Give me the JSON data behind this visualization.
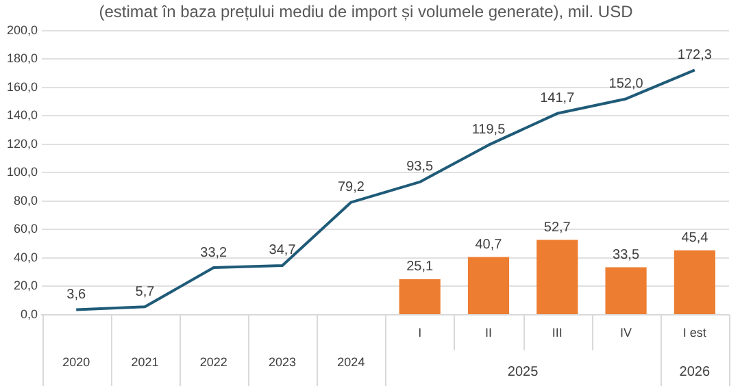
{
  "chart_data": {
    "type": "bar",
    "title": "(estimat în baza prețului mediu de import și volumele generate), mil. USD",
    "categories": [
      "2020",
      "2021",
      "2022",
      "2023",
      "2024",
      "I",
      "II",
      "III",
      "IV",
      "I est"
    ],
    "series": [
      {
        "type": "line",
        "color": "#1f5b78",
        "values": [
          3.6,
          5.7,
          33.2,
          34.7,
          79.2,
          93.5,
          119.5,
          141.7,
          152.0,
          172.3
        ],
        "value_labels": [
          "3,6",
          "5,7",
          "33,2",
          "34,7",
          "79,2",
          "93,5",
          "119,5",
          "141,7",
          "152,0",
          "172,3"
        ]
      },
      {
        "color": "#ed7d31",
        "values": [
          null,
          null,
          null,
          null,
          null,
          25.1,
          40.7,
          52.7,
          33.5,
          45.4
        ],
        "value_labels": [
          null,
          null,
          null,
          null,
          null,
          "25,1",
          "40,7",
          "52,7",
          "33,5",
          "45,4"
        ]
      }
    ],
    "annotations": [
      "2025",
      "2026"
    ],
    "ylim": [
      0,
      200
    ],
    "yticks": [
      {
        "value": 0,
        "label": "0,0"
      },
      {
        "value": 20,
        "label": "20,0"
      },
      {
        "value": 40,
        "label": "40,0"
      },
      {
        "value": 60,
        "label": "60,0"
      },
      {
        "value": 80,
        "label": "80,0"
      },
      {
        "value": 100,
        "label": "100,0"
      },
      {
        "value": 120,
        "label": "120,0"
      },
      {
        "value": 140,
        "label": "140,0"
      },
      {
        "value": 160,
        "label": "160,0"
      },
      {
        "value": 180,
        "label": "180,0"
      },
      {
        "value": 200,
        "label": "200,0"
      }
    ],
    "grid": "y",
    "legend": false
  }
}
